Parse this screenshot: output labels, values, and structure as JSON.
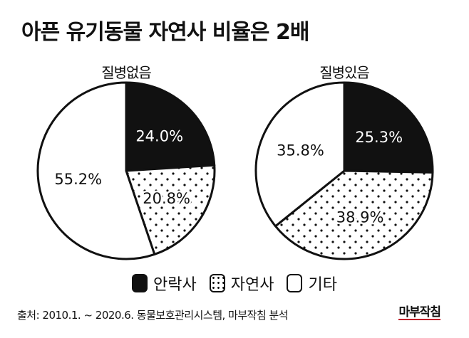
{
  "chart_data": {
    "type": "pie",
    "title": "아픈 유기동물 자연사 비율은 2배",
    "legend": [
      "안락사",
      "자연사",
      "기타"
    ],
    "legend_placement": "bottom",
    "charts": [
      {
        "title": "질병없음",
        "slices": [
          {
            "label": "안락사",
            "value": 24.0,
            "text": "24.0%"
          },
          {
            "label": "자연사",
            "value": 20.8,
            "text": "20.8%"
          },
          {
            "label": "기타",
            "value": 55.2,
            "text": "55.2%"
          }
        ]
      },
      {
        "title": "질병있음",
        "slices": [
          {
            "label": "안락사",
            "value": 25.3,
            "text": "25.3%"
          },
          {
            "label": "자연사",
            "value": 38.9,
            "text": "38.9%"
          },
          {
            "label": "기타",
            "value": 35.8,
            "text": "35.8%"
          }
        ]
      }
    ]
  },
  "source": "출처: 2010.1. ~ 2020.6. 동물보호관리시스템, 마부작침 분석",
  "logo": "마부작침",
  "colors": {
    "euthanasia": "#111111",
    "other": "#ffffff",
    "accent": "#c0202a"
  }
}
